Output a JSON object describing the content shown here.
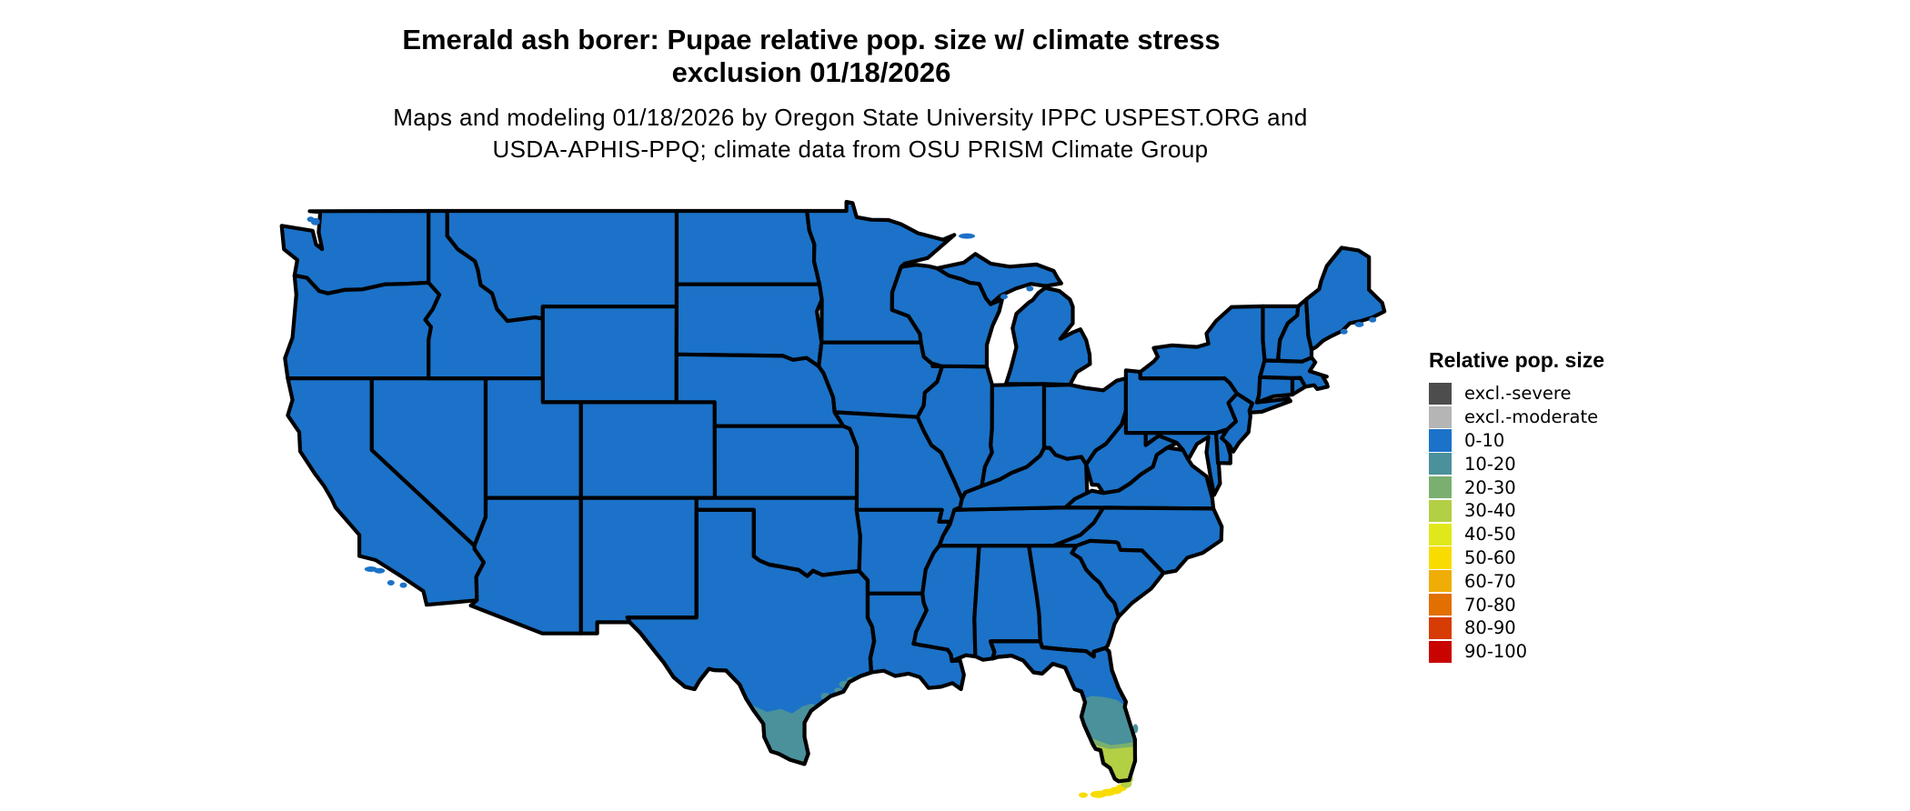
{
  "title": {
    "line1": "Emerald ash borer: Pupae relative pop. size w/ climate stress",
    "line2": "exclusion 01/18/2026"
  },
  "subtitle": {
    "line1": "Maps and modeling 01/18/2026 by Oregon State University IPPC USPEST.ORG and",
    "line2": "USDA-APHIS-PPQ; climate data from OSU PRISM Climate Group"
  },
  "legend": {
    "title": "Relative pop. size",
    "entries": [
      {
        "label": "excl.-severe",
        "color": "#4D4D4D"
      },
      {
        "label": "excl.-moderate",
        "color": "#B5B5B5"
      },
      {
        "label": "0-10",
        "color": "#1B72C8"
      },
      {
        "label": "10-20",
        "color": "#4A919B"
      },
      {
        "label": "20-30",
        "color": "#7BAF6F"
      },
      {
        "label": "30-40",
        "color": "#B3CF44"
      },
      {
        "label": "40-50",
        "color": "#E0E81C"
      },
      {
        "label": "50-60",
        "color": "#F8DC00"
      },
      {
        "label": "60-70",
        "color": "#EFAD05"
      },
      {
        "label": "70-80",
        "color": "#E17000"
      },
      {
        "label": "80-90",
        "color": "#D63C04"
      },
      {
        "label": "90-100",
        "color": "#C90300"
      }
    ]
  },
  "map": {
    "base_class": "0-10",
    "border_color": "#000000",
    "background_color": "#ffffff",
    "regions": [
      {
        "name": "south-texas",
        "class": "10-20"
      },
      {
        "name": "south-texas-tip",
        "class": "30-40"
      },
      {
        "name": "texas-coast-specks",
        "class": "10-20"
      },
      {
        "name": "central-florida",
        "class": "10-20"
      },
      {
        "name": "south-florida-transition",
        "class": "20-30"
      },
      {
        "name": "south-florida",
        "class": "30-40"
      },
      {
        "name": "florida-keys",
        "class": "50-60"
      },
      {
        "name": "florida-keys-east",
        "class": "30-40"
      },
      {
        "name": "florida-east-coast-speck",
        "class": "10-20"
      }
    ]
  }
}
